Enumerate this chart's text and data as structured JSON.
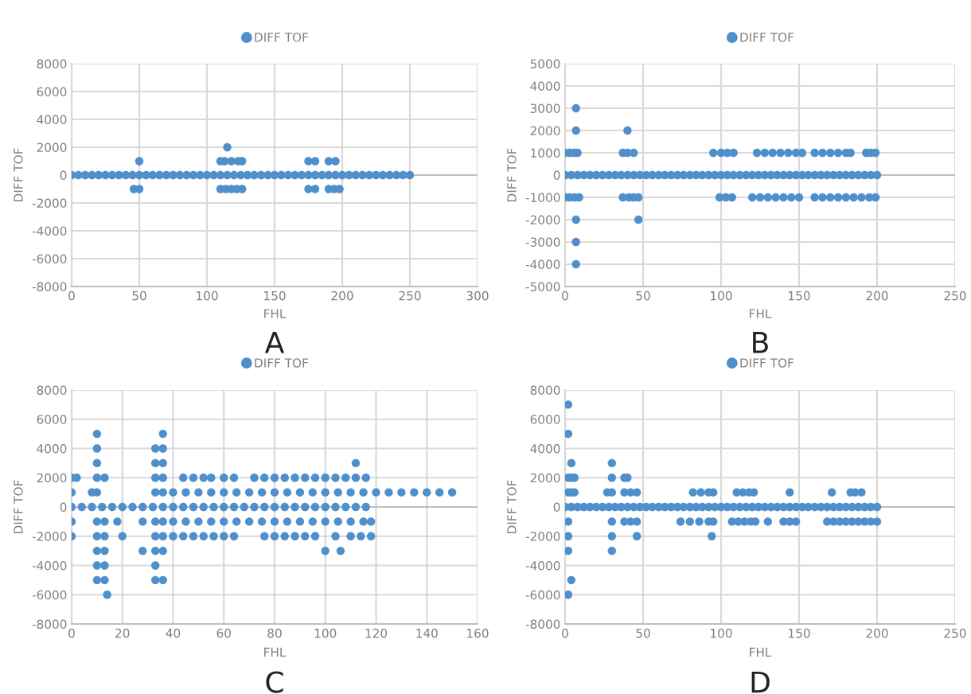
{
  "chart_data": [
    {
      "type": "scatter",
      "xlabel": "FHL",
      "ylabel": "DIFF TOF",
      "xlim": [
        0,
        300
      ],
      "ylim": [
        -8000,
        8000
      ],
      "xticks": [
        0,
        50,
        100,
        150,
        200,
        250,
        300
      ],
      "yticks": [
        -8000,
        -6000,
        -4000,
        -2000,
        0,
        2000,
        4000,
        6000,
        8000
      ],
      "grid": true,
      "legend": "top",
      "marker": "circle",
      "annotations": [
        "A"
      ],
      "series": [
        {
          "name": "DIFF TOF",
          "color": "#4f8fcc",
          "x": [
            0,
            5,
            10,
            15,
            20,
            25,
            30,
            35,
            40,
            45,
            50,
            55,
            60,
            65,
            70,
            75,
            80,
            85,
            90,
            95,
            100,
            105,
            110,
            115,
            120,
            125,
            130,
            135,
            140,
            145,
            150,
            155,
            160,
            165,
            170,
            175,
            180,
            185,
            190,
            195,
            200,
            205,
            210,
            215,
            220,
            225,
            230,
            235,
            240,
            245,
            250,
            50,
            46,
            50,
            115,
            110,
            113,
            118,
            123,
            126,
            110,
            114,
            118,
            122,
            126,
            175,
            180,
            175,
            180,
            190,
            195,
            190,
            194,
            198
          ],
          "values": [
            0,
            0,
            0,
            0,
            0,
            0,
            0,
            0,
            0,
            0,
            0,
            0,
            0,
            0,
            0,
            0,
            0,
            0,
            0,
            0,
            0,
            0,
            0,
            0,
            0,
            0,
            0,
            0,
            0,
            0,
            0,
            0,
            0,
            0,
            0,
            0,
            0,
            0,
            0,
            0,
            0,
            0,
            0,
            0,
            0,
            0,
            0,
            0,
            0,
            0,
            0,
            1000,
            -1000,
            -1000,
            2000,
            1000,
            1000,
            1000,
            1000,
            1000,
            -1000,
            -1000,
            -1000,
            -1000,
            -1000,
            1000,
            1000,
            -1000,
            -1000,
            1000,
            1000,
            -1000,
            -1000,
            -1000
          ]
        }
      ]
    },
    {
      "type": "scatter",
      "xlabel": "FHL",
      "ylabel": "DIFF TOF",
      "xlim": [
        0,
        250
      ],
      "ylim": [
        -5000,
        5000
      ],
      "xticks": [
        0,
        50,
        100,
        150,
        200,
        250
      ],
      "yticks": [
        -5000,
        -4000,
        -3000,
        -2000,
        -1000,
        0,
        1000,
        2000,
        3000,
        4000,
        5000
      ],
      "grid": true,
      "legend": "top",
      "marker": "circle",
      "annotations": [
        "B"
      ],
      "series": [
        {
          "name": "DIFF TOF",
          "color": "#4f8fcc",
          "x": [
            0,
            4,
            8,
            12,
            16,
            20,
            24,
            28,
            32,
            36,
            40,
            44,
            48,
            52,
            56,
            60,
            64,
            68,
            72,
            76,
            80,
            84,
            88,
            92,
            96,
            100,
            104,
            108,
            112,
            116,
            120,
            124,
            128,
            132,
            136,
            140,
            144,
            148,
            152,
            156,
            160,
            164,
            168,
            172,
            176,
            180,
            184,
            188,
            192,
            196,
            200,
            7,
            7,
            7,
            7,
            7,
            0,
            3,
            6,
            8,
            0,
            3,
            6,
            9,
            40,
            37,
            40,
            44,
            37,
            41,
            44,
            47,
            47,
            95,
            100,
            104,
            108,
            99,
            103,
            107,
            123,
            128,
            133,
            138,
            143,
            148,
            152,
            120,
            125,
            130,
            135,
            140,
            145,
            150,
            160,
            165,
            170,
            175,
            180,
            183,
            193,
            196,
            199,
            160,
            165,
            170,
            175,
            180,
            185,
            190,
            195,
            199
          ],
          "values": [
            0,
            0,
            0,
            0,
            0,
            0,
            0,
            0,
            0,
            0,
            0,
            0,
            0,
            0,
            0,
            0,
            0,
            0,
            0,
            0,
            0,
            0,
            0,
            0,
            0,
            0,
            0,
            0,
            0,
            0,
            0,
            0,
            0,
            0,
            0,
            0,
            0,
            0,
            0,
            0,
            0,
            0,
            0,
            0,
            0,
            0,
            0,
            0,
            0,
            0,
            0,
            3000,
            2000,
            -2000,
            -3000,
            -4000,
            1000,
            1000,
            1000,
            1000,
            -1000,
            -1000,
            -1000,
            -1000,
            2000,
            1000,
            1000,
            1000,
            -1000,
            -1000,
            -1000,
            -1000,
            -2000,
            1000,
            1000,
            1000,
            1000,
            -1000,
            -1000,
            -1000,
            1000,
            1000,
            1000,
            1000,
            1000,
            1000,
            1000,
            -1000,
            -1000,
            -1000,
            -1000,
            -1000,
            -1000,
            -1000,
            1000,
            1000,
            1000,
            1000,
            1000,
            1000,
            1000,
            1000,
            1000,
            -1000,
            -1000,
            -1000,
            -1000,
            -1000,
            -1000,
            -1000,
            -1000,
            -1000
          ]
        }
      ]
    },
    {
      "type": "scatter",
      "xlabel": "FHL",
      "ylabel": "DIFF TOF",
      "xlim": [
        0,
        160
      ],
      "ylim": [
        -8000,
        8000
      ],
      "xticks": [
        0,
        20,
        40,
        60,
        80,
        100,
        120,
        140,
        160
      ],
      "yticks": [
        -8000,
        -6000,
        -4000,
        -2000,
        0,
        2000,
        4000,
        6000,
        8000
      ],
      "grid": true,
      "legend": "top",
      "marker": "circle",
      "annotations": [
        "C"
      ],
      "series": [
        {
          "name": "DIFF TOF",
          "color": "#4f8fcc",
          "x": [
            0,
            4,
            8,
            12,
            16,
            20,
            24,
            28,
            32,
            36,
            40,
            44,
            48,
            52,
            56,
            60,
            64,
            68,
            72,
            76,
            80,
            84,
            88,
            92,
            96,
            100,
            104,
            108,
            112,
            116,
            0,
            2,
            0,
            0,
            0,
            10,
            10,
            10,
            10,
            10,
            10,
            10,
            10,
            10,
            10,
            13,
            13,
            13,
            13,
            13,
            13,
            14,
            8,
            20,
            18,
            28,
            28,
            33,
            33,
            33,
            33,
            33,
            33,
            33,
            33,
            33,
            36,
            36,
            36,
            36,
            36,
            36,
            36,
            36,
            36,
            44,
            48,
            52,
            55,
            60,
            64,
            72,
            76,
            80,
            84,
            88,
            92,
            96,
            100,
            104,
            108,
            112,
            116,
            40,
            45,
            50,
            55,
            60,
            65,
            70,
            75,
            80,
            85,
            90,
            95,
            100,
            105,
            110,
            115,
            120,
            125,
            130,
            135,
            140,
            145,
            150,
            40,
            45,
            50,
            55,
            60,
            65,
            70,
            75,
            80,
            85,
            90,
            95,
            100,
            105,
            110,
            115,
            118,
            40,
            44,
            48,
            52,
            56,
            60,
            64,
            76,
            80,
            84,
            88,
            92,
            96,
            104,
            110,
            114,
            118,
            100,
            106,
            112
          ],
          "values": [
            0,
            0,
            0,
            0,
            0,
            0,
            0,
            0,
            0,
            0,
            0,
            0,
            0,
            0,
            0,
            0,
            0,
            0,
            0,
            0,
            0,
            0,
            0,
            0,
            0,
            0,
            0,
            0,
            0,
            0,
            2000,
            2000,
            1000,
            -1000,
            -2000,
            5000,
            4000,
            3000,
            2000,
            1000,
            -1000,
            -2000,
            -3000,
            -4000,
            -5000,
            2000,
            -1000,
            -2000,
            -3000,
            -4000,
            -5000,
            -6000,
            1000,
            -2000,
            -1000,
            -1000,
            -3000,
            4000,
            3000,
            2000,
            1000,
            -1000,
            -2000,
            -3000,
            -4000,
            -5000,
            5000,
            4000,
            3000,
            2000,
            1000,
            -1000,
            -2000,
            -3000,
            -5000,
            2000,
            2000,
            2000,
            2000,
            2000,
            2000,
            2000,
            2000,
            2000,
            2000,
            2000,
            2000,
            2000,
            2000,
            2000,
            2000,
            2000,
            2000,
            1000,
            1000,
            1000,
            1000,
            1000,
            1000,
            1000,
            1000,
            1000,
            1000,
            1000,
            1000,
            1000,
            1000,
            1000,
            1000,
            1000,
            1000,
            1000,
            1000,
            1000,
            1000,
            1000,
            -1000,
            -1000,
            -1000,
            -1000,
            -1000,
            -1000,
            -1000,
            -1000,
            -1000,
            -1000,
            -1000,
            -1000,
            -1000,
            -1000,
            -1000,
            -1000,
            -1000,
            -2000,
            -2000,
            -2000,
            -2000,
            -2000,
            -2000,
            -2000,
            -2000,
            -2000,
            -2000,
            -2000,
            -2000,
            -2000,
            -2000,
            -2000,
            -2000,
            -2000,
            -3000,
            -3000,
            3000
          ]
        }
      ]
    },
    {
      "type": "scatter",
      "xlabel": "FHL",
      "ylabel": "DIFF TOF",
      "xlim": [
        0,
        250
      ],
      "ylim": [
        -8000,
        8000
      ],
      "xticks": [
        0,
        50,
        100,
        150,
        200,
        250
      ],
      "yticks": [
        -8000,
        -6000,
        -4000,
        -2000,
        0,
        2000,
        4000,
        6000,
        8000
      ],
      "grid": true,
      "legend": "top",
      "marker": "circle",
      "annotations": [
        "D"
      ],
      "series": [
        {
          "name": "DIFF TOF",
          "color": "#4f8fcc",
          "x": [
            0,
            4,
            8,
            12,
            16,
            20,
            24,
            28,
            32,
            36,
            40,
            44,
            48,
            52,
            56,
            60,
            64,
            68,
            72,
            76,
            80,
            84,
            88,
            92,
            96,
            100,
            104,
            108,
            112,
            116,
            120,
            124,
            128,
            132,
            136,
            140,
            144,
            148,
            152,
            156,
            160,
            164,
            168,
            172,
            176,
            180,
            184,
            188,
            192,
            196,
            200,
            2,
            2,
            2,
            2,
            2,
            2,
            2,
            2,
            4,
            4,
            4,
            4,
            6,
            6,
            30,
            30,
            30,
            30,
            30,
            30,
            27,
            38,
            40,
            38,
            42,
            46,
            38,
            42,
            46,
            46,
            82,
            87,
            92,
            95,
            74,
            80,
            86,
            92,
            95,
            94,
            110,
            114,
            118,
            121,
            107,
            111,
            115,
            119,
            122,
            130,
            144,
            140,
            144,
            148,
            171,
            168,
            172,
            176,
            180,
            184,
            188,
            192,
            196,
            200,
            183,
            186,
            190
          ],
          "values": [
            0,
            0,
            0,
            0,
            0,
            0,
            0,
            0,
            0,
            0,
            0,
            0,
            0,
            0,
            0,
            0,
            0,
            0,
            0,
            0,
            0,
            0,
            0,
            0,
            0,
            0,
            0,
            0,
            0,
            0,
            0,
            0,
            0,
            0,
            0,
            0,
            0,
            0,
            0,
            0,
            0,
            0,
            0,
            0,
            0,
            0,
            0,
            0,
            0,
            0,
            0,
            7000,
            5000,
            2000,
            1000,
            -1000,
            -2000,
            -3000,
            -6000,
            3000,
            2000,
            1000,
            -5000,
            2000,
            1000,
            3000,
            2000,
            1000,
            -1000,
            -2000,
            -3000,
            1000,
            2000,
            2000,
            1000,
            1000,
            1000,
            -1000,
            -1000,
            -1000,
            -2000,
            1000,
            1000,
            1000,
            1000,
            -1000,
            -1000,
            -1000,
            -1000,
            -1000,
            -2000,
            1000,
            1000,
            1000,
            1000,
            -1000,
            -1000,
            -1000,
            -1000,
            -1000,
            -1000,
            1000,
            -1000,
            -1000,
            -1000,
            1000,
            -1000,
            -1000,
            -1000,
            -1000,
            -1000,
            -1000,
            -1000,
            -1000,
            -1000,
            1000,
            1000,
            1000
          ]
        }
      ]
    }
  ]
}
